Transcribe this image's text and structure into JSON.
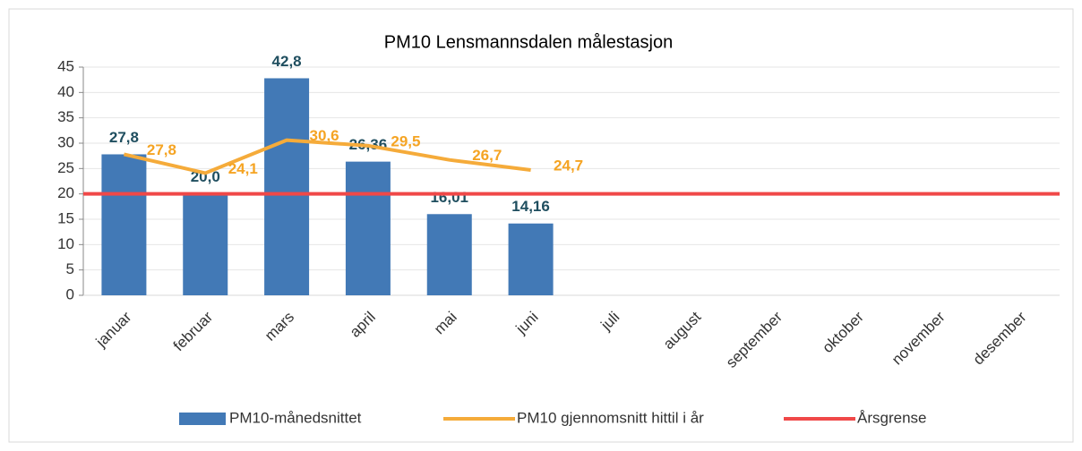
{
  "chart_data": {
    "type": "bar",
    "title": "PM10 Lensmannsdalen målestasjon",
    "categories": [
      "januar",
      "februar",
      "mars",
      "april",
      "mai",
      "juni",
      "juli",
      "august",
      "september",
      "oktober",
      "november",
      "desember"
    ],
    "series": [
      {
        "name": "PM10-månedsnittet",
        "type": "bar",
        "color": "#4279b6",
        "values": [
          27.8,
          20.0,
          42.8,
          26.36,
          16.01,
          14.16,
          null,
          null,
          null,
          null,
          null,
          null
        ],
        "value_labels": [
          "27,8",
          "20,0",
          "42,8",
          "26,36",
          "16,01",
          "14,16",
          null,
          null,
          null,
          null,
          null,
          null
        ],
        "label_color": "#1f4e5f"
      },
      {
        "name": "PM10 gjennomsnitt hittil i år",
        "type": "line",
        "color": "#f5ab3a",
        "values": [
          27.8,
          24.1,
          30.6,
          29.5,
          26.7,
          24.7,
          null,
          null,
          null,
          null,
          null,
          null
        ],
        "value_labels": [
          "27,8",
          "24,1",
          "30,6",
          "29,5",
          "26,7",
          "24,7",
          null,
          null,
          null,
          null,
          null,
          null
        ],
        "label_color": "#f5a423"
      },
      {
        "name": "Årsgrense",
        "type": "hline",
        "color": "#f04848",
        "value": 20
      }
    ],
    "ylim": [
      0,
      45
    ],
    "yticks": [
      0,
      5,
      10,
      15,
      20,
      25,
      30,
      35,
      40,
      45
    ],
    "grid": true,
    "legend": "bottom"
  }
}
